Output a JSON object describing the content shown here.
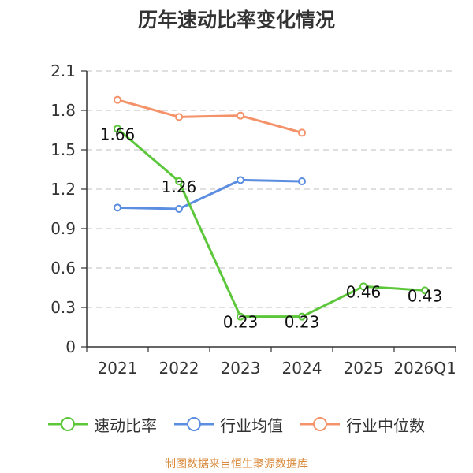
{
  "chart_data": {
    "type": "line",
    "title": "历年速动比率变化情况",
    "categories": [
      "2021",
      "2022",
      "2023",
      "2024",
      "2025",
      "2026Q1"
    ],
    "ylim": [
      0,
      2.1
    ],
    "yticks": [
      "0",
      "0.3",
      "0.6",
      "0.9",
      "1.2",
      "1.5",
      "1.8",
      "2.1"
    ],
    "grid": true,
    "legend_position": "bottom",
    "series": [
      {
        "name": "速动比率",
        "color": "#5cc73a",
        "values": [
          1.66,
          1.26,
          0.23,
          0.23,
          0.46,
          0.43
        ],
        "labels": [
          "1.66",
          "1.26",
          "0.23",
          "0.23",
          "0.46",
          "0.43"
        ]
      },
      {
        "name": "行业均值",
        "color": "#5b8de0",
        "values": [
          1.06,
          1.05,
          1.27,
          1.26,
          null,
          null
        ]
      },
      {
        "name": "行业中位数",
        "color": "#f4936a",
        "values": [
          1.88,
          1.75,
          1.76,
          1.63,
          null,
          null
        ]
      }
    ]
  },
  "source_text": "制图数据来自恒生聚源数据库"
}
